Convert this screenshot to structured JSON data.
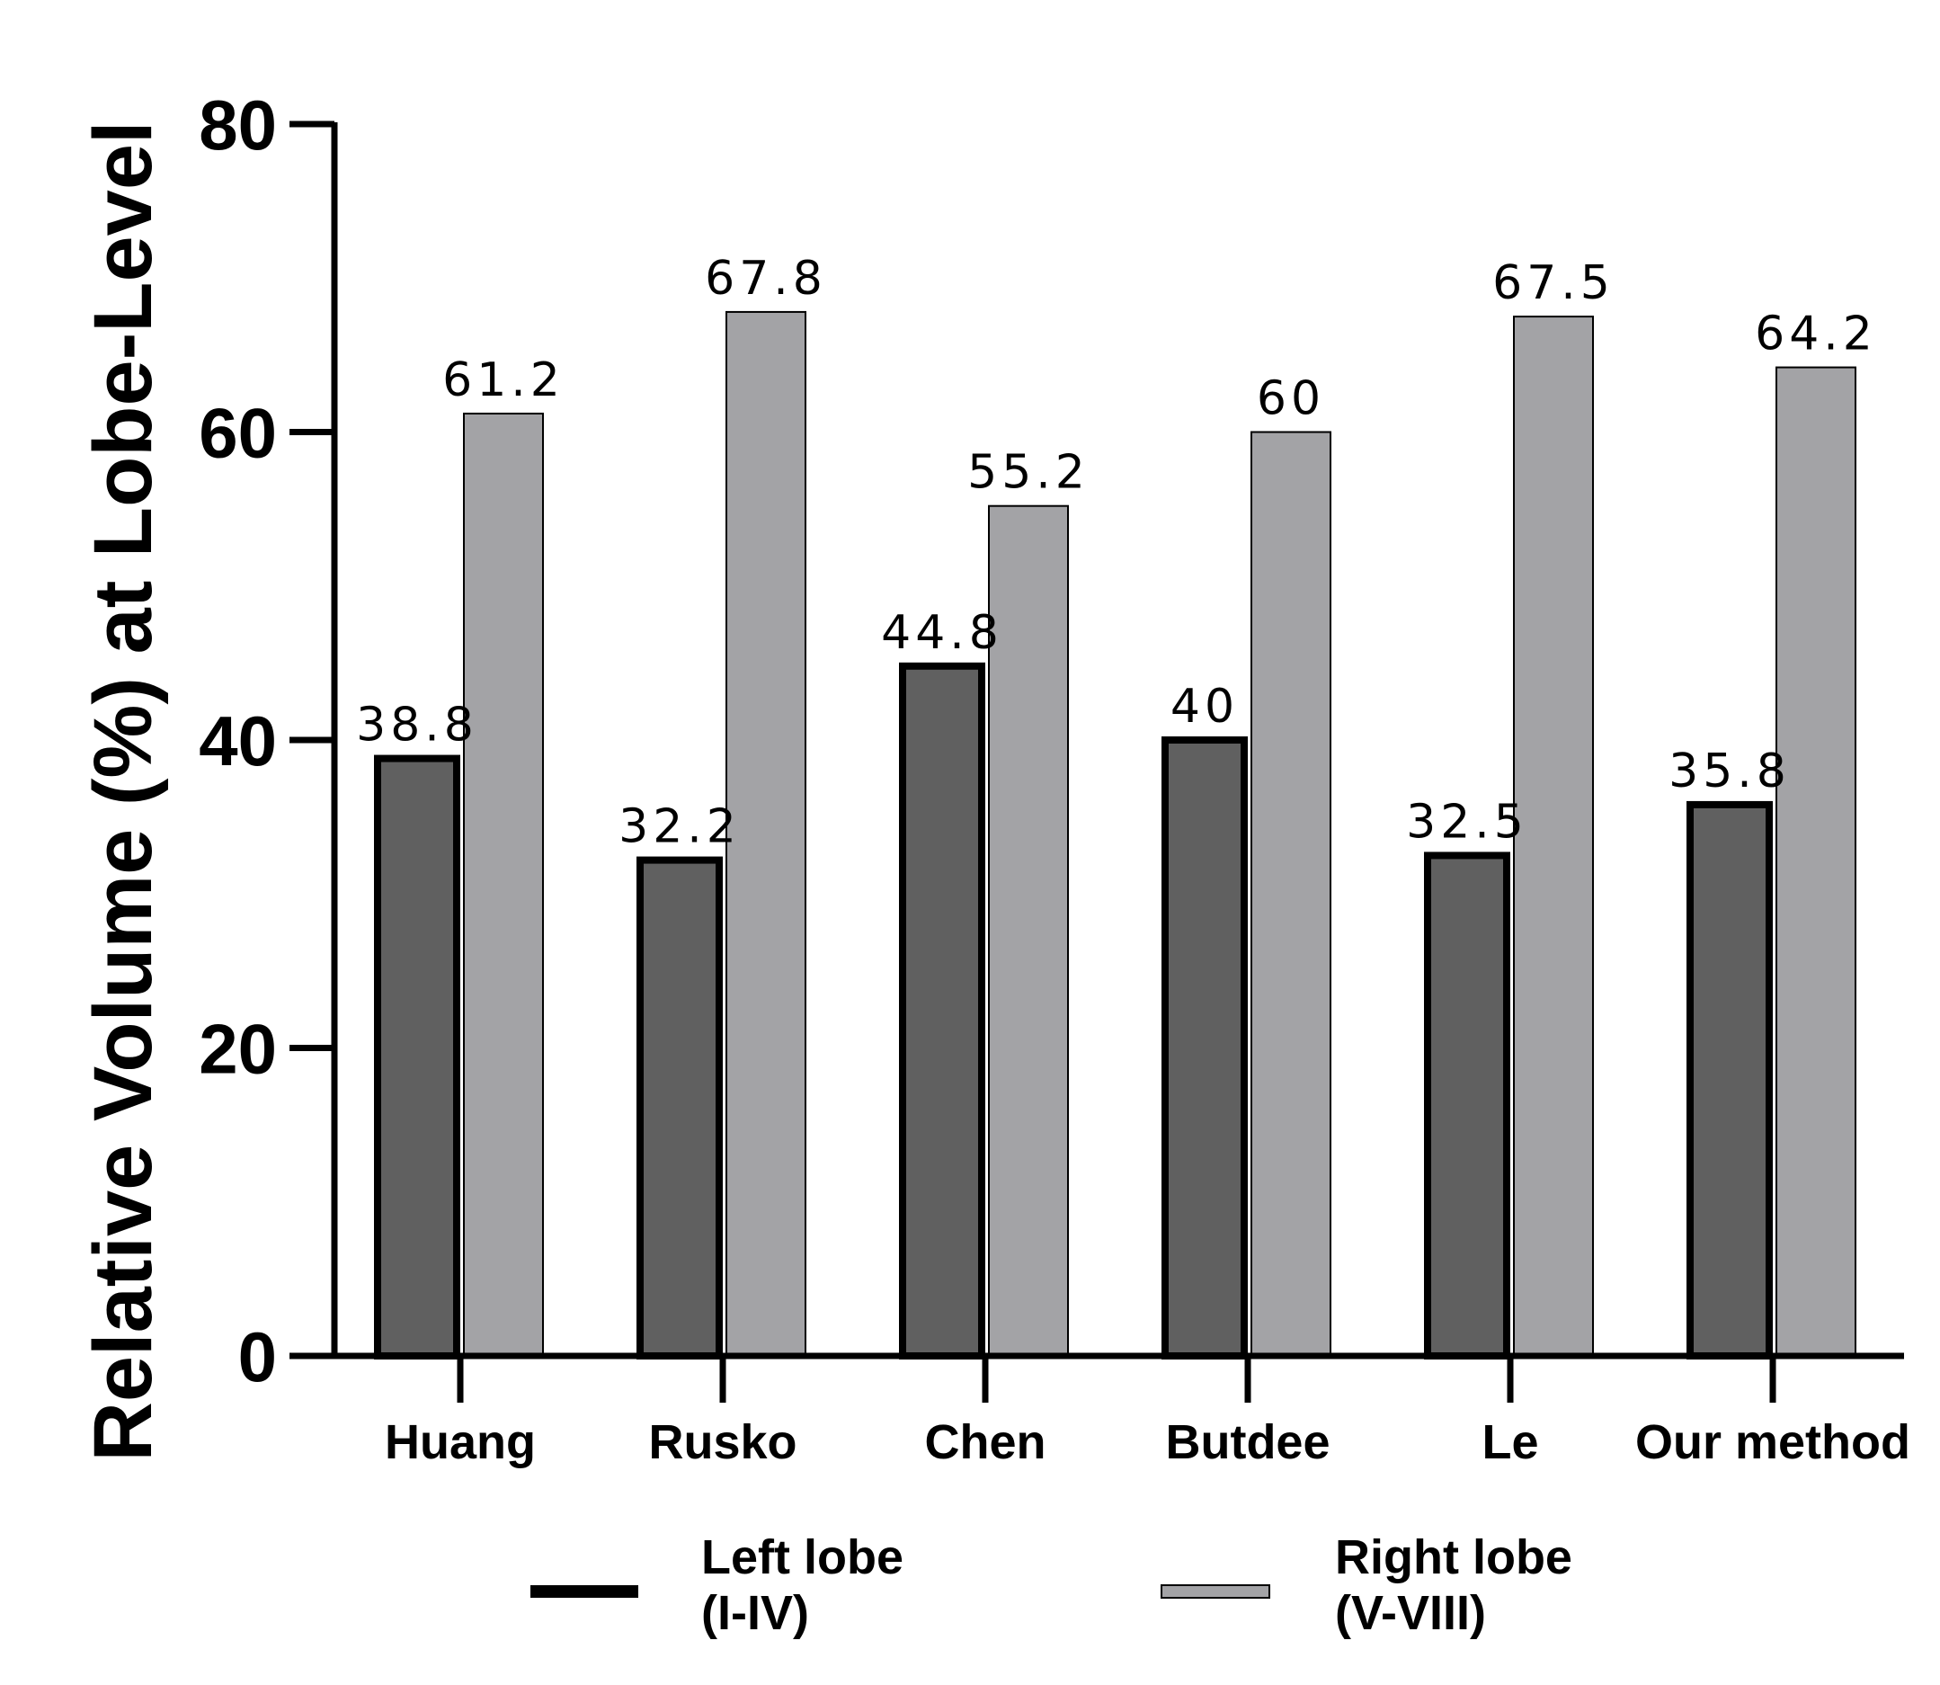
{
  "chart_data": {
    "type": "bar",
    "title": "",
    "xlabel": "",
    "ylabel": "Relative Volume (%) at Lobe-Level",
    "ylim": [
      0,
      80
    ],
    "yticks": [
      0,
      20,
      40,
      60,
      80
    ],
    "grid": false,
    "legend_position": "bottom",
    "categories": [
      "Huang",
      "Rusko",
      "Chen",
      "Butdee",
      "Le",
      "Our method"
    ],
    "series": [
      {
        "name_lines": [
          "Left lobe",
          "(I-IV)"
        ],
        "color": "#606060",
        "values": [
          38.8,
          32.2,
          44.8,
          40,
          32.5,
          35.8
        ],
        "labels": [
          "38.8",
          "32.2",
          "44.8",
          "40",
          "32.5",
          "35.8"
        ]
      },
      {
        "name_lines": [
          "Right lobe",
          "(V-VIII)"
        ],
        "color": "#a3a3a6",
        "values": [
          61.2,
          67.8,
          55.2,
          60,
          67.5,
          64.2
        ],
        "labels": [
          "61.2",
          "67.8",
          "55.2",
          "60",
          "67.5",
          "64.2"
        ]
      }
    ]
  }
}
